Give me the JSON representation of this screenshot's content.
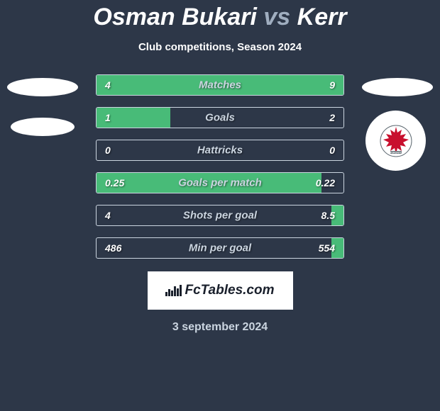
{
  "title": {
    "player1": "Osman Bukari",
    "vs": "vs",
    "player2": "Kerr"
  },
  "subtitle": "Club competitions, Season 2024",
  "stats": [
    {
      "label": "Matches",
      "left_value": "4",
      "right_value": "9",
      "left_fill_pct": 100,
      "right_fill_pct": 0,
      "fill_color": "#48bb78"
    },
    {
      "label": "Goals",
      "left_value": "1",
      "right_value": "2",
      "left_fill_pct": 30,
      "right_fill_pct": 0,
      "fill_color": "#48bb78"
    },
    {
      "label": "Hattricks",
      "left_value": "0",
      "right_value": "0",
      "left_fill_pct": 0,
      "right_fill_pct": 0,
      "fill_color": "#48bb78"
    },
    {
      "label": "Goals per match",
      "left_value": "0.25",
      "right_value": "0.22",
      "left_fill_pct": 91,
      "right_fill_pct": 0,
      "fill_color": "#48bb78"
    },
    {
      "label": "Shots per goal",
      "left_value": "4",
      "right_value": "8.5",
      "left_fill_pct": 0,
      "right_fill_pct": 5,
      "fill_color": "#48bb78"
    },
    {
      "label": "Min per goal",
      "left_value": "486",
      "right_value": "554",
      "left_fill_pct": 0,
      "right_fill_pct": 5,
      "fill_color": "#48bb78"
    }
  ],
  "logo_text": "FcTables.com",
  "date": "3 september 2024",
  "colors": {
    "background": "#2d3748",
    "fill": "#48bb78",
    "border": "#cbd5e0",
    "text_light": "#cbd5e0",
    "text_white": "#ffffff",
    "logo_bg": "#ffffff",
    "logo_text": "#1a202c",
    "club_red": "#c8102e"
  },
  "club_badge": {
    "name": "Toronto FC",
    "primary_color": "#c8102e",
    "secondary_color": "#5f6a72"
  }
}
